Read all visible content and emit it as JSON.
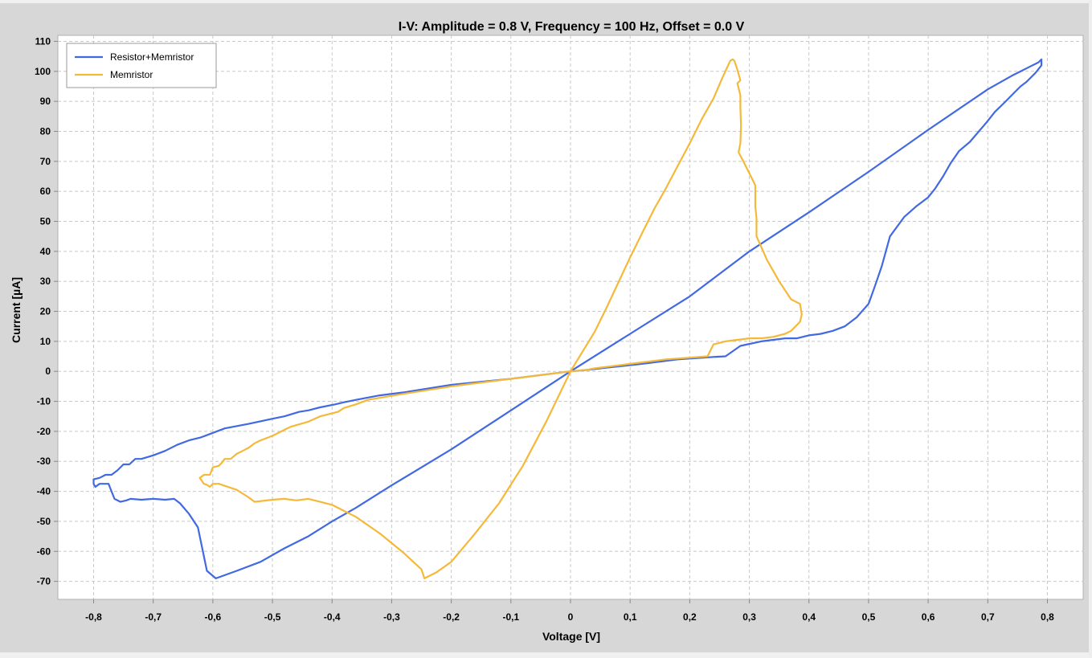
{
  "chart_data": {
    "type": "line",
    "title": "I-V: Amplitude = 0.8 V, Frequency = 100 Hz, Offset = 0.0 V",
    "xlabel": "Voltage [V]",
    "ylabel": "Current [µA]",
    "xlim": [
      -0.86,
      0.86
    ],
    "ylim": [
      -76,
      112
    ],
    "x_ticks": [
      -0.8,
      -0.7,
      -0.6,
      -0.5,
      -0.4,
      -0.3,
      -0.2,
      -0.1,
      0,
      0.1,
      0.2,
      0.3,
      0.4,
      0.5,
      0.6,
      0.7,
      0.8
    ],
    "x_tick_labels": [
      "-0,8",
      "-0,7",
      "-0,6",
      "-0,5",
      "-0,4",
      "-0,3",
      "-0,2",
      "-0,1",
      "0",
      "0,1",
      "0,2",
      "0,3",
      "0,4",
      "0,5",
      "0,6",
      "0,7",
      "0,8"
    ],
    "y_ticks": [
      -70,
      -60,
      -50,
      -40,
      -30,
      -20,
      -10,
      0,
      10,
      20,
      30,
      40,
      50,
      60,
      70,
      80,
      90,
      100,
      110
    ],
    "y_tick_labels": [
      "-70",
      "-60",
      "-50",
      "-40",
      "-30",
      "-20",
      "-10",
      "0",
      "10",
      "20",
      "30",
      "40",
      "50",
      "60",
      "70",
      "80",
      "90",
      "100",
      "110"
    ],
    "grid": true,
    "legend_position": "top-left",
    "series": [
      {
        "name": "Resistor+Memristor",
        "color": "#4169e1",
        "points": [
          [
            0,
            0
          ],
          [
            0.1,
            12.5
          ],
          [
            0.2,
            25
          ],
          [
            0.3,
            40
          ],
          [
            0.4,
            53
          ],
          [
            0.5,
            66.5
          ],
          [
            0.6,
            80.5
          ],
          [
            0.7,
            94
          ],
          [
            0.74,
            98.5
          ],
          [
            0.77,
            101.5
          ],
          [
            0.785,
            103
          ],
          [
            0.79,
            104
          ],
          [
            0.79,
            102
          ],
          [
            0.78,
            99.5
          ],
          [
            0.765,
            96.5
          ],
          [
            0.755,
            95
          ],
          [
            0.745,
            93
          ],
          [
            0.735,
            91
          ],
          [
            0.725,
            89
          ],
          [
            0.712,
            86.5
          ],
          [
            0.698,
            83
          ],
          [
            0.685,
            80
          ],
          [
            0.67,
            76.5
          ],
          [
            0.652,
            73.5
          ],
          [
            0.638,
            69.5
          ],
          [
            0.625,
            65
          ],
          [
            0.612,
            61
          ],
          [
            0.6,
            58
          ],
          [
            0.58,
            55
          ],
          [
            0.56,
            51.5
          ],
          [
            0.536,
            45
          ],
          [
            0.522,
            35
          ],
          [
            0.51,
            28
          ],
          [
            0.5,
            22.5
          ],
          [
            0.48,
            18
          ],
          [
            0.46,
            15
          ],
          [
            0.44,
            13.5
          ],
          [
            0.42,
            12.5
          ],
          [
            0.4,
            12
          ],
          [
            0.38,
            11
          ],
          [
            0.36,
            11
          ],
          [
            0.32,
            10
          ],
          [
            0.285,
            8.5
          ],
          [
            0.26,
            5
          ],
          [
            0.24,
            4.8
          ],
          [
            0.18,
            4
          ],
          [
            0.12,
            2.5
          ],
          [
            0.06,
            1.2
          ],
          [
            0.03,
            0.5
          ],
          [
            0,
            0
          ],
          [
            -0.1,
            -2.5
          ],
          [
            -0.2,
            -4.5
          ],
          [
            -0.28,
            -7
          ],
          [
            -0.32,
            -8
          ],
          [
            -0.36,
            -9.5
          ],
          [
            -0.38,
            -10.3
          ],
          [
            -0.395,
            -11
          ],
          [
            -0.42,
            -12
          ],
          [
            -0.44,
            -13
          ],
          [
            -0.455,
            -13.5
          ],
          [
            -0.48,
            -15
          ],
          [
            -0.5,
            -15.8
          ],
          [
            -0.54,
            -17.5
          ],
          [
            -0.58,
            -19
          ],
          [
            -0.6,
            -20.5
          ],
          [
            -0.62,
            -22
          ],
          [
            -0.64,
            -23
          ],
          [
            -0.66,
            -24.5
          ],
          [
            -0.68,
            -26.5
          ],
          [
            -0.7,
            -28
          ],
          [
            -0.72,
            -29.2
          ],
          [
            -0.73,
            -29.2
          ],
          [
            -0.74,
            -31
          ],
          [
            -0.75,
            -31
          ],
          [
            -0.76,
            -33
          ],
          [
            -0.77,
            -34.5
          ],
          [
            -0.78,
            -34.5
          ],
          [
            -0.79,
            -35.5
          ],
          [
            -0.8,
            -36
          ],
          [
            -0.8,
            -37.5
          ],
          [
            -0.797,
            -38.5
          ],
          [
            -0.79,
            -37.5
          ],
          [
            -0.782,
            -37.5
          ],
          [
            -0.775,
            -37.5
          ],
          [
            -0.77,
            -40
          ],
          [
            -0.765,
            -42.5
          ],
          [
            -0.755,
            -43.5
          ],
          [
            -0.745,
            -43
          ],
          [
            -0.738,
            -42.5
          ],
          [
            -0.72,
            -42.8
          ],
          [
            -0.7,
            -42.5
          ],
          [
            -0.68,
            -42.8
          ],
          [
            -0.665,
            -42.5
          ],
          [
            -0.655,
            -44
          ],
          [
            -0.64,
            -47.5
          ],
          [
            -0.625,
            -52
          ],
          [
            -0.61,
            -66.5
          ],
          [
            -0.595,
            -69
          ],
          [
            -0.56,
            -66.5
          ],
          [
            -0.52,
            -63.5
          ],
          [
            -0.48,
            -59
          ],
          [
            -0.44,
            -55
          ],
          [
            -0.4,
            -50
          ],
          [
            -0.36,
            -45.5
          ],
          [
            -0.3,
            -38
          ],
          [
            -0.2,
            -26
          ],
          [
            -0.1,
            -13
          ],
          [
            0,
            0
          ]
        ]
      },
      {
        "name": "Memristor",
        "color": "#f5b93a",
        "points": [
          [
            0,
            0
          ],
          [
            0.02,
            6.5
          ],
          [
            0.04,
            13
          ],
          [
            0.06,
            21
          ],
          [
            0.08,
            29.5
          ],
          [
            0.1,
            38
          ],
          [
            0.12,
            46
          ],
          [
            0.14,
            54
          ],
          [
            0.16,
            61
          ],
          [
            0.18,
            68.5
          ],
          [
            0.2,
            76
          ],
          [
            0.22,
            84
          ],
          [
            0.24,
            91
          ],
          [
            0.255,
            98
          ],
          [
            0.262,
            101
          ],
          [
            0.268,
            103.5
          ],
          [
            0.272,
            104
          ],
          [
            0.275,
            103.5
          ],
          [
            0.28,
            100.5
          ],
          [
            0.285,
            97
          ],
          [
            0.28,
            96
          ],
          [
            0.285,
            92
          ],
          [
            0.285,
            88
          ],
          [
            0.286,
            82
          ],
          [
            0.285,
            76
          ],
          [
            0.282,
            73
          ],
          [
            0.29,
            70
          ],
          [
            0.3,
            66
          ],
          [
            0.31,
            62
          ],
          [
            0.31,
            60
          ],
          [
            0.31,
            55
          ],
          [
            0.312,
            51
          ],
          [
            0.312,
            47.5
          ],
          [
            0.312,
            45
          ],
          [
            0.33,
            37
          ],
          [
            0.35,
            30
          ],
          [
            0.37,
            24
          ],
          [
            0.385,
            22.5
          ],
          [
            0.388,
            19
          ],
          [
            0.385,
            16.5
          ],
          [
            0.37,
            13.5
          ],
          [
            0.36,
            12.5
          ],
          [
            0.34,
            11.5
          ],
          [
            0.32,
            11
          ],
          [
            0.3,
            11
          ],
          [
            0.28,
            10.5
          ],
          [
            0.26,
            10
          ],
          [
            0.24,
            9
          ],
          [
            0.236,
            7.5
          ],
          [
            0.23,
            5
          ],
          [
            0.16,
            4
          ],
          [
            0.1,
            2.5
          ],
          [
            0.04,
            1
          ],
          [
            0.03,
            0.6
          ],
          [
            0,
            0
          ],
          [
            -0.1,
            -2.5
          ],
          [
            -0.2,
            -5
          ],
          [
            -0.28,
            -7.5
          ],
          [
            -0.34,
            -9.5
          ],
          [
            -0.36,
            -11
          ],
          [
            -0.38,
            -12.2
          ],
          [
            -0.39,
            -13.5
          ],
          [
            -0.42,
            -15
          ],
          [
            -0.44,
            -16.8
          ],
          [
            -0.47,
            -18.5
          ],
          [
            -0.48,
            -19.5
          ],
          [
            -0.5,
            -21.5
          ],
          [
            -0.52,
            -23
          ],
          [
            -0.53,
            -24
          ],
          [
            -0.54,
            -25.5
          ],
          [
            -0.55,
            -26.5
          ],
          [
            -0.56,
            -27.5
          ],
          [
            -0.57,
            -29.2
          ],
          [
            -0.58,
            -29.2
          ],
          [
            -0.585,
            -30.5
          ],
          [
            -0.59,
            -31.5
          ],
          [
            -0.6,
            -32
          ],
          [
            -0.605,
            -34.5
          ],
          [
            -0.615,
            -34.5
          ],
          [
            -0.622,
            -35.5
          ],
          [
            -0.615,
            -37.5
          ],
          [
            -0.61,
            -37.8
          ],
          [
            -0.605,
            -38.5
          ],
          [
            -0.6,
            -37.5
          ],
          [
            -0.59,
            -37.5
          ],
          [
            -0.56,
            -39.5
          ],
          [
            -0.54,
            -42
          ],
          [
            -0.53,
            -43.5
          ],
          [
            -0.5,
            -42.8
          ],
          [
            -0.48,
            -42.5
          ],
          [
            -0.46,
            -43
          ],
          [
            -0.44,
            -42.5
          ],
          [
            -0.42,
            -43.5
          ],
          [
            -0.4,
            -44.5
          ],
          [
            -0.36,
            -48.5
          ],
          [
            -0.32,
            -54
          ],
          [
            -0.28,
            -60.5
          ],
          [
            -0.25,
            -66
          ],
          [
            -0.245,
            -69
          ],
          [
            -0.225,
            -67
          ],
          [
            -0.2,
            -63.5
          ],
          [
            -0.16,
            -54
          ],
          [
            -0.12,
            -44
          ],
          [
            -0.08,
            -31.5
          ],
          [
            -0.04,
            -16.5
          ],
          [
            0,
            0
          ]
        ]
      }
    ]
  }
}
